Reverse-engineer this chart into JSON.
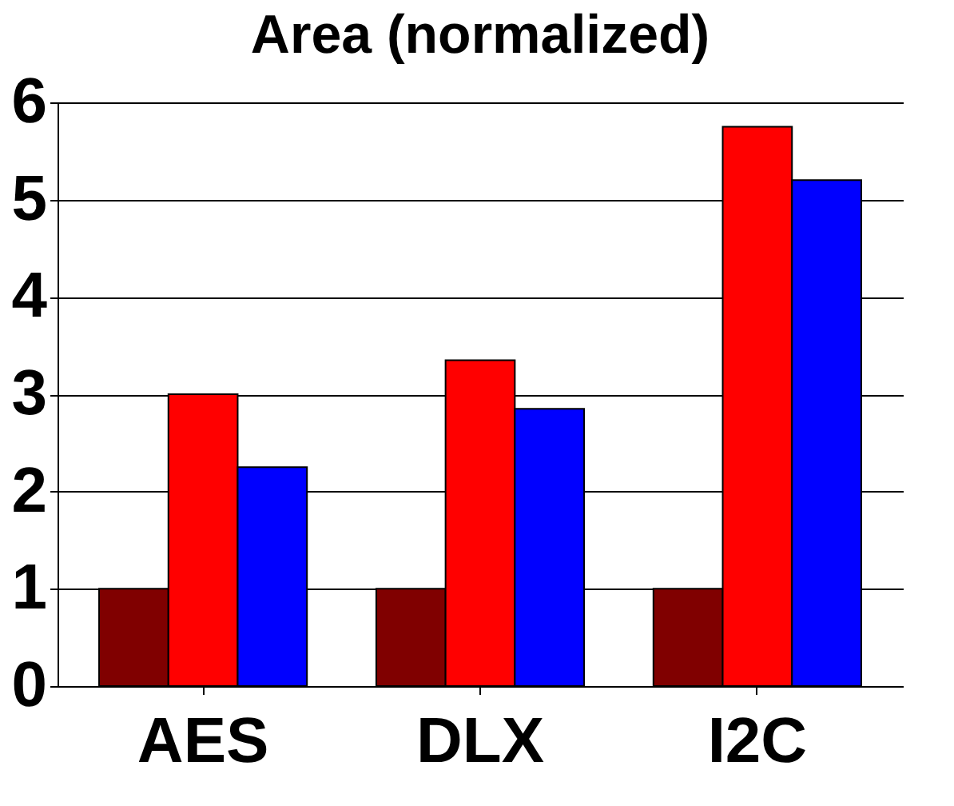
{
  "chart_data": {
    "type": "bar",
    "title": "Area (normalized)",
    "categories": [
      "AES",
      "DLX",
      "I2C"
    ],
    "series": [
      {
        "color": "#800000",
        "values": [
          1,
          1,
          1
        ]
      },
      {
        "color": "#ff0000",
        "values": [
          3,
          3.35,
          5.75
        ]
      },
      {
        "color": "#0000ff",
        "values": [
          2.25,
          2.85,
          5.2
        ]
      }
    ],
    "ylim": [
      0,
      6
    ],
    "yticks": [
      0,
      1,
      2,
      3,
      4,
      5,
      6
    ],
    "grid": "y",
    "legend": false
  }
}
